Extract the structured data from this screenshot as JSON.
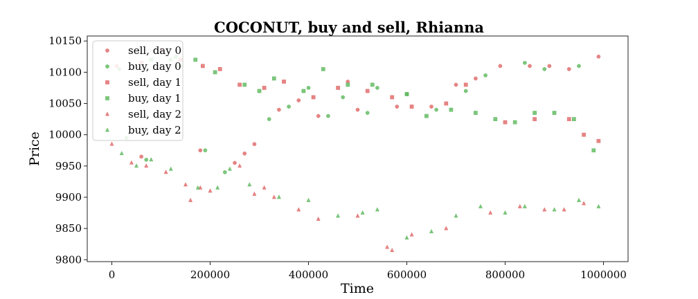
{
  "chart_data": {
    "type": "scatter",
    "title": "COCONUT, buy and sell, Rhianna",
    "xlabel": "Time",
    "ylabel": "Price",
    "xlim": [
      -50000,
      1050000
    ],
    "ylim": [
      9797,
      10158
    ],
    "xticks": [
      0,
      200000,
      400000,
      600000,
      800000,
      1000000
    ],
    "yticks": [
      9800,
      9850,
      9900,
      9950,
      10000,
      10050,
      10100,
      10150
    ],
    "grid": false,
    "legend_position": "top-left",
    "colors": {
      "sell": "#e06666",
      "buy": "#5cb85c"
    },
    "series": [
      {
        "name": "sell, day 0",
        "marker": "circle",
        "side": "sell",
        "x": [
          10000,
          60000,
          100000,
          180000,
          250000,
          270000,
          290000,
          340000,
          380000,
          420000,
          480000,
          500000,
          580000,
          650000,
          700000,
          740000,
          790000,
          850000,
          890000,
          930000,
          990000
        ],
        "y": [
          10110,
          9965,
          10135,
          9975,
          9955,
          9970,
          9985,
          10040,
          10055,
          10030,
          10085,
          10040,
          10045,
          10045,
          10080,
          10090,
          10110,
          10110,
          10110,
          10105,
          10125
        ]
      },
      {
        "name": "buy, day 0",
        "marker": "circle",
        "side": "buy",
        "x": [
          15000,
          30000,
          70000,
          120000,
          140000,
          190000,
          230000,
          320000,
          360000,
          400000,
          440000,
          470000,
          520000,
          540000,
          600000,
          660000,
          720000,
          760000,
          840000,
          880000,
          950000
        ],
        "y": [
          10105,
          9995,
          9960,
          10120,
          10110,
          9975,
          9940,
          10025,
          10045,
          10075,
          10030,
          10060,
          10035,
          10075,
          10065,
          10040,
          10070,
          10095,
          10115,
          10105,
          10110
        ]
      },
      {
        "name": "sell, day 1",
        "marker": "square",
        "side": "sell",
        "x": [
          60000,
          140000,
          185000,
          220000,
          260000,
          310000,
          350000,
          410000,
          460000,
          520000,
          570000,
          610000,
          680000,
          720000,
          800000,
          860000,
          930000,
          960000,
          990000
        ],
        "y": [
          10115,
          10120,
          10110,
          10105,
          10080,
          10075,
          10085,
          10060,
          10075,
          10070,
          10060,
          10045,
          10050,
          10080,
          10020,
          10025,
          10025,
          10000,
          9990
        ],
        "__note": ""
      },
      {
        "name": "buy, day 1",
        "marker": "square",
        "side": "buy",
        "x": [
          80000,
          130000,
          170000,
          210000,
          270000,
          300000,
          330000,
          390000,
          430000,
          480000,
          530000,
          600000,
          640000,
          690000,
          740000,
          780000,
          820000,
          860000,
          900000,
          940000,
          980000
        ],
        "y": [
          10120,
          10125,
          10120,
          10100,
          10080,
          10070,
          10090,
          10070,
          10105,
          10080,
          10080,
          10065,
          10030,
          10040,
          10035,
          10025,
          10020,
          10035,
          10035,
          10025,
          9975
        ]
      },
      {
        "name": "sell, day 2",
        "marker": "triangle",
        "side": "sell",
        "x": [
          0,
          40000,
          70000,
          110000,
          150000,
          160000,
          180000,
          200000,
          260000,
          290000,
          310000,
          330000,
          380000,
          420000,
          500000,
          560000,
          570000,
          610000,
          680000,
          770000,
          830000,
          880000,
          920000,
          960000
        ],
        "y": [
          9985,
          9955,
          9950,
          9940,
          9920,
          9895,
          9915,
          9910,
          9950,
          9905,
          9915,
          9900,
          9880,
          9865,
          9870,
          9820,
          9815,
          9840,
          9850,
          9875,
          9885,
          9880,
          9880,
          9890
        ]
      },
      {
        "name": "buy, day 2",
        "marker": "triangle",
        "side": "buy",
        "x": [
          20000,
          50000,
          80000,
          120000,
          175000,
          215000,
          240000,
          280000,
          340000,
          400000,
          460000,
          510000,
          540000,
          600000,
          650000,
          700000,
          750000,
          800000,
          840000,
          900000,
          950000,
          990000
        ],
        "y": [
          9970,
          9950,
          9960,
          9945,
          9915,
          9915,
          9945,
          9920,
          9900,
          9895,
          9870,
          9875,
          9880,
          9835,
          9845,
          9870,
          9885,
          9875,
          9885,
          9880,
          9895,
          9885
        ]
      }
    ]
  }
}
